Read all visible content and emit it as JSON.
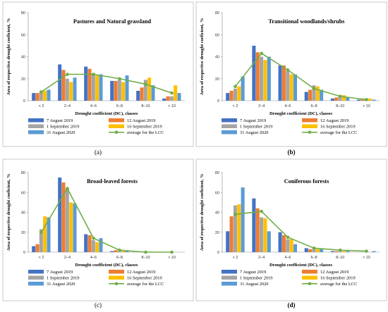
{
  "colors": {
    "series": [
      "#4472C4",
      "#ED7D31",
      "#A5A5A5",
      "#FFC000",
      "#5B9BD5"
    ],
    "average_line": "#70AD47",
    "average_marker": "#70AD47"
  },
  "chart_data": [
    {
      "type": "bar",
      "panel_label": "(a)",
      "title": "Pastures and Natural grassland",
      "xlabel": "Drought coefficient   (DC), classes",
      "ylabel": "Area of respective   drought coeficient,  %",
      "categories": [
        "< 2",
        "2–4",
        "4–6",
        "6–8",
        "8–10",
        "> 10"
      ],
      "ylim": [
        0,
        80
      ],
      "yticks": [
        0,
        20,
        40,
        60,
        80
      ],
      "grid": false,
      "legend_position": "bottom",
      "series": [
        {
          "name": "7 August 2019",
          "values": [
            7,
            33,
            31,
            18,
            9,
            2
          ]
        },
        {
          "name": "12 August 2019",
          "values": [
            7,
            28,
            29,
            18,
            12,
            4
          ]
        },
        {
          "name": "1 September 2019",
          "values": [
            9,
            20,
            25,
            19,
            19,
            4
          ]
        },
        {
          "name": "16 September 2019",
          "values": [
            9,
            17,
            23,
            17,
            21,
            14
          ]
        },
        {
          "name": "31 August 2020",
          "values": [
            10,
            21,
            24,
            23,
            14,
            7
          ]
        }
      ],
      "line": {
        "name": "average for the LCC",
        "values": [
          8,
          24,
          24,
          20,
          15,
          7
        ]
      }
    },
    {
      "type": "bar",
      "panel_label": "(b)",
      "title": "Transitional woodlands/shrubs",
      "xlabel": "Drought coefficient   (DC), classes",
      "ylabel": "Area of respective   drought coeficient,  %",
      "categories": [
        "< 2",
        "2–4",
        "4–6",
        "6–8",
        "8–10",
        "> 10"
      ],
      "ylim": [
        0,
        80
      ],
      "yticks": [
        0,
        20,
        40,
        60,
        80
      ],
      "grid": false,
      "legend_position": "bottom",
      "series": [
        {
          "name": "7 August 2019",
          "values": [
            7,
            50,
            32,
            8,
            2,
            1
          ]
        },
        {
          "name": "12 August 2019",
          "values": [
            9,
            44,
            32,
            10,
            3,
            1
          ]
        },
        {
          "name": "1 September 2019",
          "values": [
            11,
            40,
            27,
            14,
            5,
            2
          ]
        },
        {
          "name": "16 September 2019",
          "values": [
            13,
            37,
            24,
            13,
            5,
            2
          ]
        },
        {
          "name": "31 August 2020",
          "values": [
            22,
            40,
            24,
            10,
            3,
            1
          ]
        }
      ],
      "line": {
        "name": "average for the LCC",
        "values": [
          13,
          43,
          28,
          11,
          4,
          1
        ]
      }
    },
    {
      "type": "bar",
      "panel_label": "(c)",
      "title": "Broad-leaved forests",
      "xlabel": "Drought coefficient   (DC), classes",
      "ylabel": "Area of respective   drought coeficient,  %",
      "categories": [
        "< 2",
        "2–4",
        "4–6",
        "6–8",
        "8–10",
        "> 10"
      ],
      "ylim": [
        0,
        80
      ],
      "yticks": [
        0,
        20,
        40,
        60,
        80
      ],
      "grid": false,
      "legend_position": "bottom",
      "series": [
        {
          "name": "7 August 2019",
          "values": [
            6,
            75,
            18,
            1,
            0,
            0
          ]
        },
        {
          "name": "12 August 2019",
          "values": [
            8,
            70,
            17,
            2,
            0,
            0
          ]
        },
        {
          "name": "1 September 2019",
          "values": [
            23,
            64,
            12,
            1,
            0,
            0
          ]
        },
        {
          "name": "16 September 2019",
          "values": [
            36,
            50,
            10,
            1,
            0,
            0
          ]
        },
        {
          "name": "31 August 2020",
          "values": [
            35,
            49,
            14,
            1,
            0,
            0
          ]
        }
      ],
      "line": {
        "name": "average for the LCC",
        "values": [
          20,
          64,
          14,
          2,
          0,
          0
        ]
      }
    },
    {
      "type": "bar",
      "panel_label": "(d)",
      "title": "Coniferous forests",
      "xlabel": "Drought coefficient   (DC), classes",
      "ylabel": "Area of respective   drought coeficient,  %",
      "categories": [
        "< 2",
        "2–4",
        "4–6",
        "6–8",
        "8–10",
        "> 10"
      ],
      "ylim": [
        0,
        80
      ],
      "yticks": [
        0,
        20,
        40,
        60,
        80
      ],
      "grid": false,
      "legend_position": "bottom",
      "series": [
        {
          "name": "7 August 2019",
          "values": [
            21,
            54,
            20,
            4,
            1,
            0
          ]
        },
        {
          "name": "12 August 2019",
          "values": [
            36,
            44,
            17,
            3,
            1,
            0
          ]
        },
        {
          "name": "1 September 2019",
          "values": [
            47,
            35,
            13,
            3,
            1,
            0
          ]
        },
        {
          "name": "16 September 2019",
          "values": [
            48,
            34,
            13,
            3,
            1,
            0
          ]
        },
        {
          "name": "31 August 2020",
          "values": [
            65,
            21,
            8,
            3,
            1,
            1
          ]
        }
      ],
      "line": {
        "name": "average for the LCC",
        "values": [
          38,
          41,
          15,
          4,
          2,
          1
        ]
      }
    }
  ]
}
